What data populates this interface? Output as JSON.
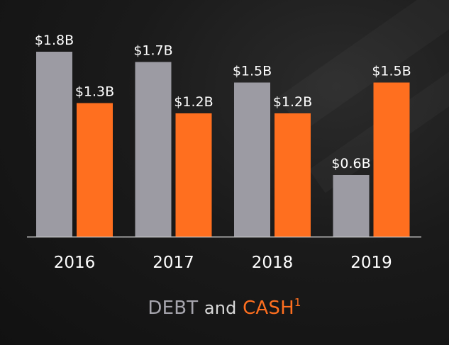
{
  "chart_data": {
    "type": "bar",
    "categories": [
      "2016",
      "2017",
      "2018",
      "2019"
    ],
    "series": [
      {
        "name": "DEBT",
        "color": "#9c9ba3",
        "values": [
          1.8,
          1.7,
          1.5,
          0.6
        ],
        "labels": [
          "$1.8B",
          "$1.7B",
          "$1.5B",
          "$0.6B"
        ]
      },
      {
        "name": "CASH",
        "color": "#ff6f1f",
        "values": [
          1.3,
          1.2,
          1.2,
          1.5
        ],
        "labels": [
          "$1.3B",
          "$1.2B",
          "$1.2B",
          "$1.5B"
        ]
      }
    ],
    "title": "",
    "xlabel": "",
    "ylabel": "",
    "ylim": [
      0,
      1.8
    ],
    "grid": false,
    "legend": "bottom-center"
  },
  "legend": {
    "debt_label": "DEBT",
    "and_label": "and",
    "cash_label": "CASH",
    "footnote_marker": "1"
  }
}
